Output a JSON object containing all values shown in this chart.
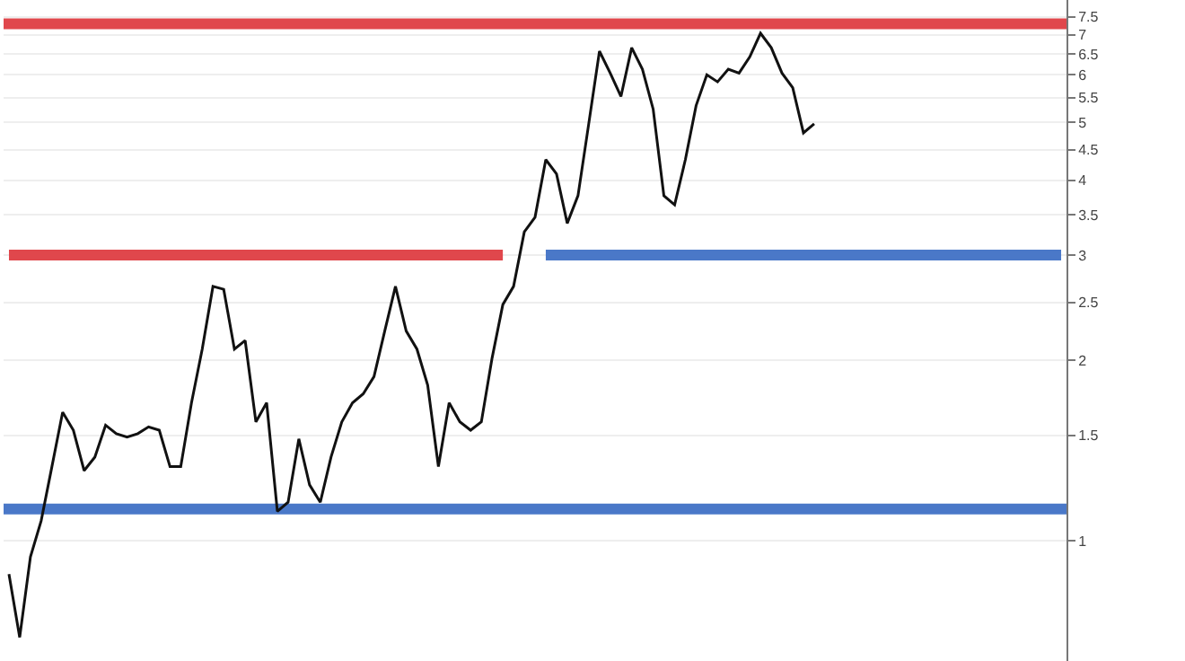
{
  "chart_data": {
    "type": "line",
    "categories": [
      null,
      null,
      null,
      null,
      null,
      null,
      null,
      null,
      null,
      null,
      null,
      null,
      null,
      null,
      null,
      null,
      null,
      null,
      null,
      null,
      null,
      null,
      null,
      null,
      null,
      null,
      null,
      null,
      null,
      null,
      null,
      null,
      null,
      null,
      null,
      null,
      null,
      null,
      null,
      null,
      null,
      null,
      null,
      null,
      null,
      null,
      null,
      null,
      null,
      null,
      null,
      null,
      null,
      null,
      null,
      null,
      null,
      null,
      null,
      null,
      null,
      null,
      null,
      null,
      null,
      null,
      null,
      null,
      null,
      null,
      null,
      null,
      null,
      null,
      null,
      null,
      null,
      null,
      null,
      null,
      null,
      null,
      null,
      null,
      null,
      null,
      null,
      null,
      null,
      null,
      null,
      null,
      null,
      null,
      null,
      null,
      null,
      null,
      null
    ],
    "series": [
      {
        "color": "#111111",
        "values": [
          0.88,
          0.69,
          0.94,
          1.08,
          1.33,
          1.64,
          1.53,
          1.31,
          1.38,
          1.56,
          1.51,
          1.49,
          1.51,
          1.55,
          1.53,
          1.33,
          1.33,
          1.7,
          2.09,
          2.66,
          2.63,
          2.09,
          2.16,
          1.58,
          1.7,
          1.12,
          1.16,
          1.48,
          1.24,
          1.16,
          1.38,
          1.58,
          1.7,
          1.76,
          1.88,
          2.24,
          2.66,
          2.24,
          2.09,
          1.82,
          1.33,
          1.7,
          1.58,
          1.53,
          1.58,
          2.02,
          2.48,
          2.66,
          3.28,
          3.47,
          4.33,
          4.1,
          3.39,
          3.77,
          4.97,
          6.57,
          6.04,
          5.52,
          6.66,
          6.13,
          5.26,
          3.77,
          3.64,
          4.33,
          5.33,
          6.0,
          5.84,
          6.13,
          6.04,
          6.43,
          7.04,
          6.66,
          6.04,
          5.71,
          4.8,
          4.97,
          null,
          null,
          null,
          null,
          null,
          null,
          null,
          null,
          null,
          null,
          null,
          null,
          null,
          null,
          null,
          null,
          null,
          null,
          null,
          null,
          null,
          null,
          null
        ]
      },
      {
        "type": "line",
        "color": "#e0474c",
        "values": [
          3,
          3,
          3,
          3,
          3,
          3,
          3,
          3,
          3,
          3,
          3,
          3,
          3,
          3,
          3,
          3,
          3,
          3,
          3,
          3,
          3,
          3,
          3,
          3,
          3,
          3,
          3,
          3,
          3,
          3,
          3,
          3,
          3,
          3,
          3,
          3,
          3,
          3,
          3,
          3,
          3,
          3,
          3,
          3,
          3,
          3,
          3,
          null,
          null,
          null,
          null,
          null,
          null,
          null,
          null,
          null,
          null,
          null,
          null,
          null,
          null,
          null,
          null,
          null,
          null,
          null,
          null,
          null,
          null,
          null,
          null,
          null,
          null,
          null,
          null,
          null,
          null,
          null,
          null,
          null,
          null,
          null,
          null,
          null,
          null,
          null,
          null,
          null,
          null,
          null,
          null,
          null,
          null,
          null,
          null,
          null,
          null,
          null,
          null
        ]
      },
      {
        "type": "line",
        "color": "#4a78c8",
        "values": [
          null,
          null,
          null,
          null,
          null,
          null,
          null,
          null,
          null,
          null,
          null,
          null,
          null,
          null,
          null,
          null,
          null,
          null,
          null,
          null,
          null,
          null,
          null,
          null,
          null,
          null,
          null,
          null,
          null,
          null,
          null,
          null,
          null,
          null,
          null,
          null,
          null,
          null,
          null,
          null,
          null,
          null,
          null,
          null,
          null,
          null,
          null,
          null,
          null,
          null,
          3,
          3,
          3,
          3,
          3,
          3,
          3,
          3,
          3,
          3,
          3,
          3,
          3,
          3,
          3,
          3,
          3,
          3,
          3,
          3,
          3,
          3,
          3,
          3,
          3,
          3,
          3,
          3,
          3,
          3,
          3,
          3,
          3,
          3,
          3,
          3,
          3,
          3,
          3,
          3,
          3,
          3,
          3,
          3,
          3,
          3,
          3,
          3,
          3
        ]
      }
    ],
    "ref_lines": [
      {
        "axis": "y",
        "value": 7.3,
        "color": "#e0474c"
      },
      {
        "axis": "y",
        "value": 1.13,
        "color": "#4a78c8"
      }
    ],
    "log": true,
    "ylim": [
      0.63,
      8
    ],
    "yticks": [
      1,
      1.5,
      2,
      2.5,
      3,
      3.5,
      4,
      4.5,
      5,
      5.5,
      6,
      6.5,
      7,
      7.5
    ],
    "grid": "y",
    "tick_labels": "y"
  }
}
